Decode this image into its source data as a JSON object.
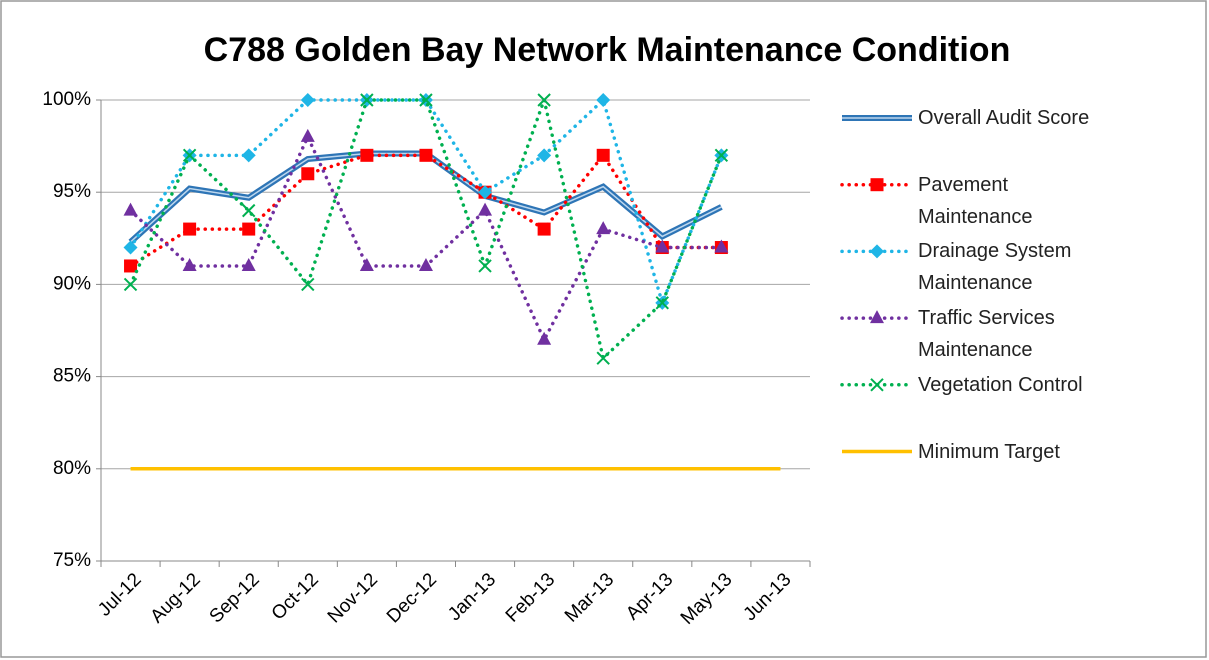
{
  "chart_data": {
    "type": "line",
    "title": "C788 Golden Bay Network Maintenance Condition",
    "categories": [
      "Jul-12",
      "Aug-12",
      "Sep-12",
      "Oct-12",
      "Nov-12",
      "Dec-12",
      "Jan-13",
      "Feb-13",
      "Mar-13",
      "Apr-13",
      "May-13",
      "Jun-13"
    ],
    "series": [
      {
        "name": "Overall Audit Score",
        "color": "#2e75b6",
        "style": "double",
        "values": [
          92.3,
          95.2,
          94.7,
          96.8,
          97.1,
          97.1,
          94.8,
          93.9,
          95.3,
          92.6,
          94.2,
          null
        ]
      },
      {
        "name": "Pavement Maintenance",
        "color": "#ff0000",
        "style": "dotted",
        "marker": "square",
        "values": [
          91,
          93,
          93,
          96,
          97,
          97,
          95,
          93,
          97,
          92,
          92,
          null
        ]
      },
      {
        "name": "Drainage System Maintenance",
        "color": "#1fb5e6",
        "style": "dotted",
        "marker": "diamond",
        "values": [
          92,
          97,
          97,
          100,
          100,
          100,
          95,
          97,
          100,
          89,
          97,
          null
        ]
      },
      {
        "name": "Traffic Services Maintenance",
        "color": "#7030a0",
        "style": "dotted",
        "marker": "triangle",
        "values": [
          94,
          91,
          91,
          98,
          91,
          91,
          94,
          87,
          93,
          92,
          92,
          null
        ]
      },
      {
        "name": "Vegetation Control",
        "color": "#00b050",
        "style": "dotted",
        "marker": "x",
        "values": [
          90,
          97,
          94,
          90,
          100,
          100,
          91,
          100,
          86,
          89,
          97,
          null
        ]
      },
      {
        "name": "Minimum Target",
        "color": "#ffc000",
        "style": "solid",
        "values": [
          80,
          80,
          80,
          80,
          80,
          80,
          80,
          80,
          80,
          80,
          80,
          80
        ]
      }
    ],
    "ylim": [
      75,
      100
    ],
    "yticks": [
      {
        "value": 75,
        "label": "75%"
      },
      {
        "value": 80,
        "label": "80%"
      },
      {
        "value": 85,
        "label": "85%"
      },
      {
        "value": 90,
        "label": "90%"
      },
      {
        "value": 95,
        "label": "95%"
      },
      {
        "value": 100,
        "label": "100%"
      }
    ],
    "grid": true,
    "legend": "right"
  }
}
